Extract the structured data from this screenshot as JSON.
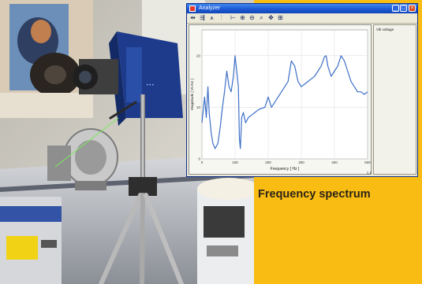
{
  "caption": "Frequency spectrum",
  "window": {
    "title": "Analyzer",
    "status_text": "1,1",
    "side_panel_label": "Vib voltage",
    "controls": {
      "minimize": "_",
      "maximize": "□",
      "close": "×"
    }
  },
  "toolbar": {
    "icons": [
      "cursor-icon",
      "dual-cursor-icon",
      "peak-icon",
      "harmonic-icon",
      "range-icon",
      "zoom-in-icon",
      "zoom-out-icon",
      "zoom-x-icon",
      "pan-icon",
      "autoscale-icon"
    ]
  },
  "chart_data": {
    "type": "line",
    "title": "",
    "xlabel": "Frequency [ Hz ]",
    "ylabel": "Magnitude [ V/√Hz ]",
    "xlim": [
      0,
      500
    ],
    "ylim": [
      0,
      25
    ],
    "xticks": [
      0,
      100,
      200,
      300,
      400,
      500
    ],
    "yticks": [
      0,
      10,
      20
    ],
    "grid": true,
    "series": [
      {
        "color": "#3D6FC6",
        "x": [
          0,
          8,
          13,
          18,
          22,
          28,
          33,
          40,
          48,
          55,
          60,
          68,
          75,
          82,
          88,
          95,
          100,
          105,
          110,
          113,
          116,
          118,
          120,
          125,
          132,
          140,
          150,
          160,
          170,
          180,
          190,
          200,
          210,
          220,
          230,
          240,
          250,
          260,
          270,
          280,
          290,
          300,
          310,
          320,
          330,
          340,
          350,
          360,
          370,
          375,
          380,
          390,
          400,
          410,
          420,
          430,
          440,
          450,
          460,
          470,
          480,
          490,
          500
        ],
        "y": [
          7,
          12,
          8,
          14,
          9,
          5,
          3,
          2,
          3,
          6,
          9,
          13,
          17,
          14,
          13,
          16,
          20,
          17,
          14,
          4,
          2,
          5,
          8,
          9,
          7,
          8,
          8.5,
          9,
          9.5,
          9.8,
          10,
          12,
          10,
          11,
          12,
          13,
          14,
          15,
          19,
          18,
          15,
          14,
          14.5,
          15,
          15.5,
          16,
          17,
          18,
          19.8,
          20,
          18,
          16,
          17,
          18,
          20,
          19,
          17,
          15,
          14,
          13,
          13,
          12.5,
          13
        ]
      }
    ]
  }
}
